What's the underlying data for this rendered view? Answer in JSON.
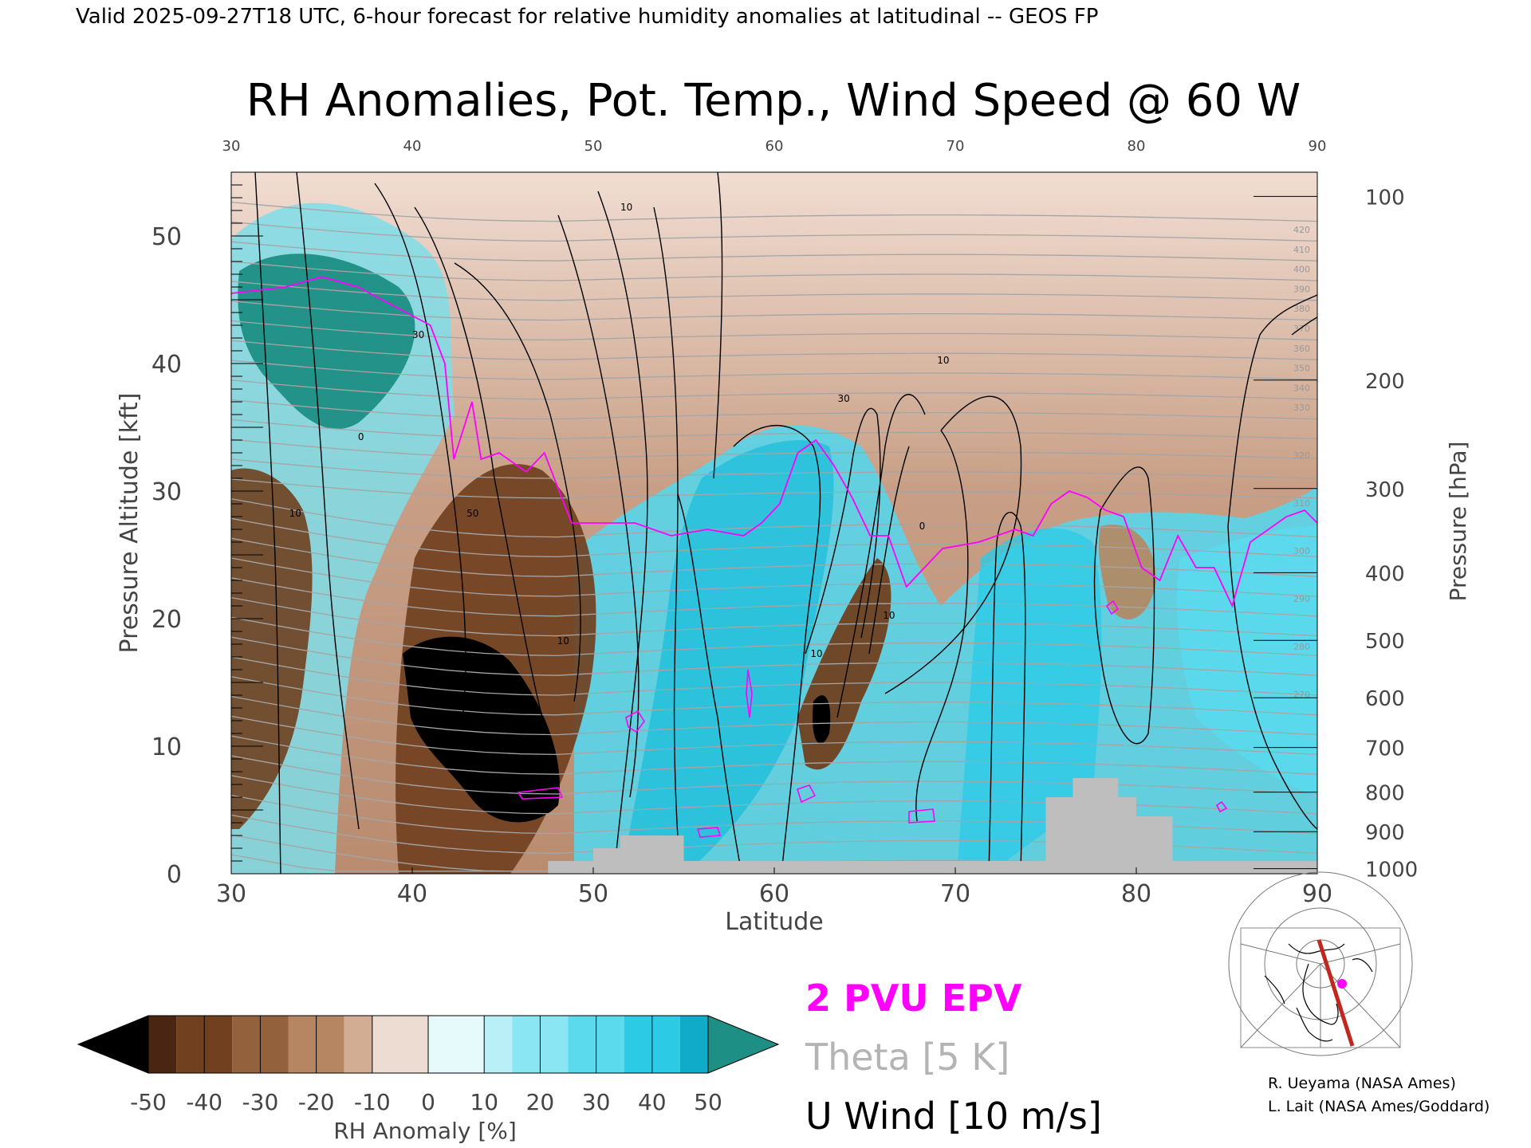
{
  "header": {
    "valid_line": "Valid 2025-09-27T18 UTC, 6-hour forecast for relative humidity anomalies at latitudinal -- GEOS FP"
  },
  "chart_data": {
    "type": "heatmap",
    "title": "RH Anomalies, Pot. Temp., Wind Speed @ 60 W",
    "xlabel": "Latitude",
    "ylabel": "Pressure Altitude [kft]",
    "y2label": "Pressure [hPa]",
    "xlim": [
      30,
      90
    ],
    "ylim": [
      0,
      55
    ],
    "x_ticks": [
      "30",
      "40",
      "50",
      "60",
      "70",
      "80",
      "90"
    ],
    "y_ticks": [
      "0",
      "10",
      "20",
      "30",
      "40",
      "50"
    ],
    "pressure_ticks": [
      {
        "label": "100",
        "kft": 53.1
      },
      {
        "label": "200",
        "kft": 38.7
      },
      {
        "label": "300",
        "kft": 30.2
      },
      {
        "label": "400",
        "kft": 23.6
      },
      {
        "label": "500",
        "kft": 18.3
      },
      {
        "label": "600",
        "kft": 13.8
      },
      {
        "label": "700",
        "kft": 9.9
      },
      {
        "label": "800",
        "kft": 6.4
      },
      {
        "label": "900",
        "kft": 3.3
      },
      {
        "label": "1000",
        "kft": 0.4
      }
    ],
    "colorbar": {
      "label": "RH Anomaly [%]",
      "ticks": [
        "-50",
        "-40",
        "-30",
        "-20",
        "-10",
        "0",
        "10",
        "20",
        "30",
        "40",
        "50"
      ],
      "colors": [
        "#000000",
        "#4a2612",
        "#70401f",
        "#93613c",
        "#b58661",
        "#d3ad93",
        "#eddcd2",
        "#e6f9fb",
        "#b9f0f7",
        "#8ae6f3",
        "#5bdaee",
        "#2dcae6",
        "#10abc8",
        "#1e8f84"
      ]
    },
    "series": [
      {
        "name": "2 PVU EPV",
        "color": "#ff00ff",
        "x": [
          30,
          33,
          35,
          37,
          39,
          41,
          41.8,
          42.3,
          43.3,
          43.8,
          44.8,
          46.3,
          47.3,
          48.8,
          50.3,
          52.3,
          54.3,
          56.3,
          58.3,
          59.3,
          60.3,
          61.3,
          62.3,
          63.3,
          64.3,
          65.3,
          66.3,
          67.3,
          69.3,
          71.3,
          73.3,
          74.3,
          75.3,
          76.3,
          77.3,
          78.3,
          79.3,
          80.3,
          81.3,
          82.3,
          83.3,
          84.3,
          85.3,
          86.3,
          88.3,
          89.3,
          90
        ],
        "y": [
          45.5,
          46.0,
          46.8,
          46.0,
          44.5,
          43.0,
          40.0,
          32.5,
          37.0,
          32.5,
          33.0,
          31.5,
          33.0,
          27.5,
          27.5,
          27.5,
          26.5,
          27.0,
          26.5,
          27.5,
          29.0,
          33.0,
          34.0,
          32.0,
          29.5,
          26.5,
          26.5,
          22.5,
          25.5,
          26.0,
          27.0,
          26.5,
          29.0,
          30.0,
          29.5,
          28.5,
          28.0,
          24.0,
          23.0,
          26.5,
          24.0,
          24.0,
          21.0,
          26.0,
          28.0,
          28.5,
          27.5
        ]
      },
      {
        "name": "Theta [5 K]",
        "color": "#b4b4b4",
        "contour_labels": [
          "420",
          "410",
          "400",
          "390",
          "380",
          "370",
          "360",
          "350",
          "340",
          "330",
          "320",
          "310",
          "300",
          "290",
          "280",
          "270"
        ]
      },
      {
        "name": "U Wind [10 m/s]",
        "color": "#000000",
        "contour_labels": [
          "10",
          "30",
          "50",
          "10",
          "10",
          "10",
          "10",
          "30",
          "10",
          "0",
          "10",
          "0"
        ]
      }
    ],
    "legend_placement": "bottom-center",
    "grid": false
  },
  "map_inset": {
    "section_color": "#c0281e",
    "point_color": "#ff00ff"
  },
  "credits": {
    "line1": "R. Ueyama (NASA Ames)",
    "line2": "L. Lait (NASA Ames/Goddard)"
  }
}
